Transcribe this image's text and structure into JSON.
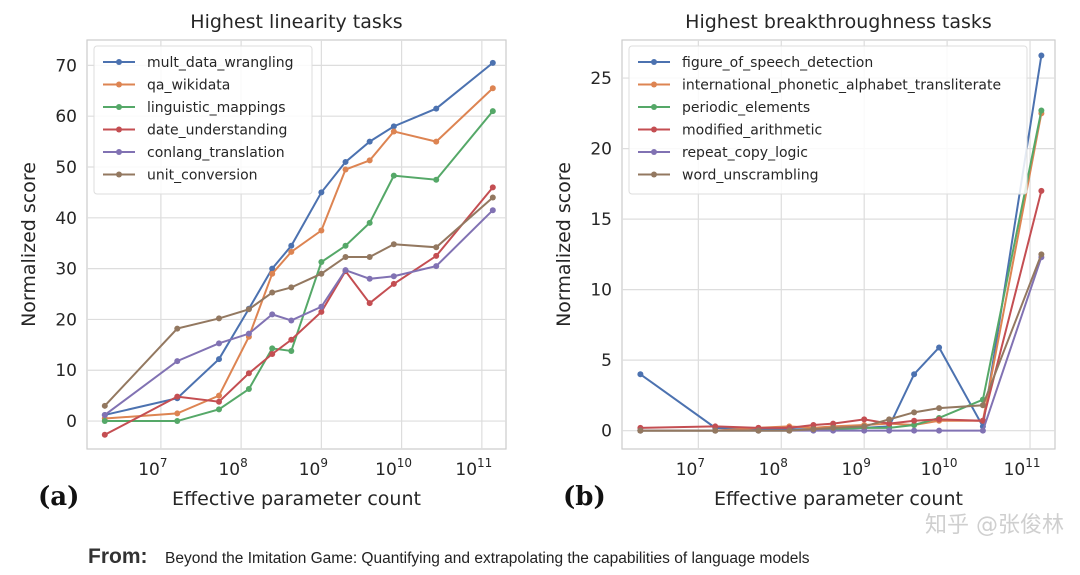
{
  "chart_data": [
    {
      "type": "line",
      "panel_label": "(a)",
      "title": "Highest linearity tasks",
      "xlabel": "Effective parameter count",
      "ylabel": "Normalized score",
      "xscale": "log",
      "x": [
        2000000.0,
        16000000.0,
        53000000.0,
        125000000.0,
        244000000.0,
        422000000.0,
        1000000000.0,
        2000000000.0,
        4000000000.0,
        8000000000.0,
        27000000000.0,
        137000000000.0
      ],
      "xlim": [
        1200000.0,
        200000000000.0
      ],
      "xticks": [
        {
          "value": 10000000.0,
          "label": "10",
          "exp": "7"
        },
        {
          "value": 100000000.0,
          "label": "10",
          "exp": "8"
        },
        {
          "value": 1000000000.0,
          "label": "10",
          "exp": "9"
        },
        {
          "value": 10000000000.0,
          "label": "10",
          "exp": "10"
        },
        {
          "value": 100000000000.0,
          "label": "10",
          "exp": "11"
        }
      ],
      "ylim": [
        -5.5,
        75
      ],
      "yticks": [
        0,
        10,
        20,
        30,
        40,
        50,
        60,
        70
      ],
      "legend_position": "top-left",
      "grid": true,
      "series": [
        {
          "name": "mult_data_wrangling",
          "color": "#4c72b0",
          "values": [
            1.2,
            4.5,
            12.2,
            22.1,
            30,
            34.5,
            45,
            51,
            55,
            58,
            61.5,
            70.5
          ]
        },
        {
          "name": "qa_wikidata",
          "color": "#dd8452",
          "values": [
            0.5,
            1.5,
            5,
            16.6,
            29,
            33.3,
            37.5,
            49.5,
            51.3,
            57,
            55,
            65.5
          ]
        },
        {
          "name": "linguistic_mappings",
          "color": "#55a868",
          "values": [
            0,
            0,
            2.3,
            6.3,
            14.3,
            13.8,
            31.3,
            34.5,
            39,
            48.3,
            47.5,
            61
          ]
        },
        {
          "name": "date_understanding",
          "color": "#c44e52",
          "values": [
            -2.7,
            4.8,
            3.8,
            9.4,
            13.2,
            16,
            21.5,
            29.5,
            23.2,
            27,
            32.5,
            46
          ]
        },
        {
          "name": "conlang_translation",
          "color": "#8172b3",
          "values": [
            1.2,
            11.8,
            15.3,
            17.2,
            21,
            19.8,
            22.5,
            29.7,
            28,
            28.5,
            30.5,
            41.5
          ]
        },
        {
          "name": "unit_conversion",
          "color": "#937860",
          "values": [
            3,
            18.2,
            20.2,
            22,
            25.3,
            26.3,
            29,
            32.3,
            32.3,
            34.8,
            34.2,
            44
          ]
        }
      ]
    },
    {
      "type": "line",
      "panel_label": "(b)",
      "title": "Highest breakthroughness tasks",
      "xlabel": "Effective parameter count",
      "ylabel": "Normalized score",
      "xscale": "log",
      "x": [
        2000000.0,
        16000000.0,
        53000000.0,
        125000000.0,
        244000000.0,
        422000000.0,
        1000000000.0,
        2000000000.0,
        4000000000.0,
        8000000000.0,
        27000000000.0,
        137000000000.0
      ],
      "xlim": [
        1200000.0,
        200000000000.0
      ],
      "xticks": [
        {
          "value": 10000000.0,
          "label": "10",
          "exp": "7"
        },
        {
          "value": 100000000.0,
          "label": "10",
          "exp": "8"
        },
        {
          "value": 1000000000.0,
          "label": "10",
          "exp": "9"
        },
        {
          "value": 10000000000.0,
          "label": "10",
          "exp": "10"
        },
        {
          "value": 100000000000.0,
          "label": "10",
          "exp": "11"
        }
      ],
      "ylim": [
        -1.3,
        27.7
      ],
      "yticks": [
        0,
        5,
        10,
        15,
        20,
        25
      ],
      "legend_position": "top-left",
      "grid": true,
      "series": [
        {
          "name": "figure_of_speech_detection",
          "color": "#4c72b0",
          "values": [
            4,
            0.2,
            0.1,
            0.1,
            0.1,
            0.1,
            0.2,
            0.3,
            4,
            5.9,
            0.3,
            26.6
          ]
        },
        {
          "name": "international_phonetic_alphabet_transliterate",
          "color": "#dd8452",
          "values": [
            0,
            0,
            0.2,
            0.3,
            0.2,
            0.3,
            0.4,
            0.5,
            0.4,
            0.7,
            0.7,
            22.5
          ]
        },
        {
          "name": "periodic_elements",
          "color": "#55a868",
          "values": [
            0,
            0,
            0,
            0,
            0.1,
            0.1,
            0.2,
            0.2,
            0.4,
            0.9,
            2.2,
            22.7
          ]
        },
        {
          "name": "modified_arithmetic",
          "color": "#c44e52",
          "values": [
            0.2,
            0.3,
            0.2,
            0.2,
            0.4,
            0.5,
            0.8,
            0.5,
            0.7,
            0.8,
            0.7,
            17
          ]
        },
        {
          "name": "repeat_copy_logic",
          "color": "#8172b3",
          "values": [
            0,
            0,
            0,
            0,
            0,
            0,
            0,
            0,
            0,
            0,
            0,
            12.3
          ]
        },
        {
          "name": "word_unscrambling",
          "color": "#937860",
          "values": [
            0,
            0,
            0,
            0,
            0.1,
            0.2,
            0.3,
            0.8,
            1.3,
            1.6,
            1.8,
            12.5
          ]
        }
      ]
    }
  ],
  "caption": {
    "prefix": "From:",
    "text": "Beyond the Imitation Game: Quantifying and extrapolating the capabilities of language models"
  },
  "watermark": "知乎 @张俊林"
}
